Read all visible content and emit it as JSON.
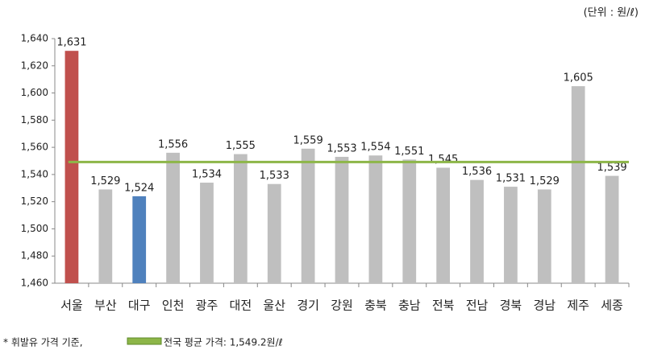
{
  "chart_data": {
    "type": "bar",
    "unit_note": "(단위 : 원/ℓ)",
    "footnote": "* 휘발유 가격 기준,",
    "categories": [
      "서울",
      "부산",
      "대구",
      "인천",
      "광주",
      "대전",
      "울산",
      "경기",
      "강원",
      "충북",
      "충남",
      "전북",
      "전남",
      "경북",
      "경남",
      "제주",
      "세종"
    ],
    "values": [
      1631,
      1529,
      1524,
      1556,
      1534,
      1555,
      1533,
      1559,
      1553,
      1554,
      1551,
      1545,
      1536,
      1531,
      1529,
      1605,
      1539
    ],
    "value_labels": [
      "1,631",
      "1,529",
      "1,524",
      "1,556",
      "1,534",
      "1,555",
      "1,533",
      "1,559",
      "1,553",
      "1,554",
      "1,551",
      "1,545",
      "1,536",
      "1,531",
      "1,529",
      "1,605",
      "1,539"
    ],
    "colors": [
      "#c0504d",
      "#bfbfbf",
      "#4f81bd",
      "#bfbfbf",
      "#bfbfbf",
      "#bfbfbf",
      "#bfbfbf",
      "#bfbfbf",
      "#bfbfbf",
      "#bfbfbf",
      "#bfbfbf",
      "#bfbfbf",
      "#bfbfbf",
      "#bfbfbf",
      "#bfbfbf",
      "#bfbfbf",
      "#bfbfbf"
    ],
    "average": {
      "value": 1549.2,
      "label": "전국 평균 가격: 1,549.2원/ℓ",
      "color": "#8db648"
    },
    "ylim": [
      1460,
      1640
    ],
    "yticks": [
      {
        "value": 1460,
        "label": "1,460"
      },
      {
        "value": 1480,
        "label": "1,480"
      },
      {
        "value": 1500,
        "label": "1,500"
      },
      {
        "value": 1520,
        "label": "1,520"
      },
      {
        "value": 1540,
        "label": "1,540"
      },
      {
        "value": 1560,
        "label": "1,560"
      },
      {
        "value": 1580,
        "label": "1,580"
      },
      {
        "value": 1600,
        "label": "1,600"
      },
      {
        "value": 1620,
        "label": "1,620"
      },
      {
        "value": 1640,
        "label": "1,640"
      }
    ],
    "grid": false
  }
}
